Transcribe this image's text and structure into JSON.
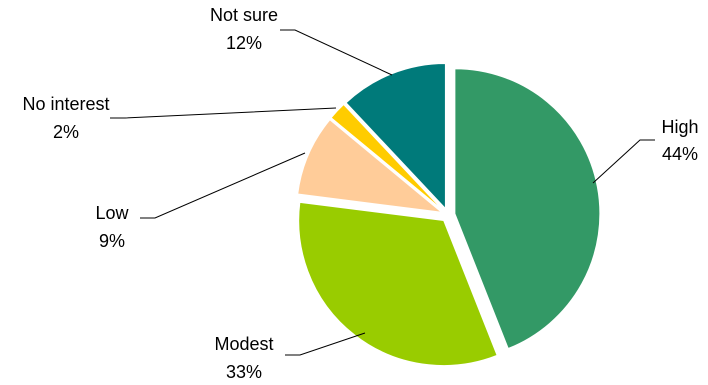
{
  "chart_data": {
    "type": "pie",
    "title": "",
    "slices": [
      {
        "label": "High",
        "value": 44,
        "value_label": "44%",
        "color": "#339966"
      },
      {
        "label": "Modest",
        "value": 33,
        "value_label": "33%",
        "color": "#99CC00"
      },
      {
        "label": "Low",
        "value": 9,
        "value_label": "9%",
        "color": "#FFCC99"
      },
      {
        "label": "No interest",
        "value": 2,
        "value_label": "2%",
        "color": "#FFCC00"
      },
      {
        "label": "Not sure",
        "value": 12,
        "value_label": "12%",
        "color": "#007A7A"
      }
    ],
    "exploded": true,
    "start_angle": "12 o'clock",
    "direction": "clockwise",
    "legend": "none",
    "labels": "outside with leader lines"
  }
}
